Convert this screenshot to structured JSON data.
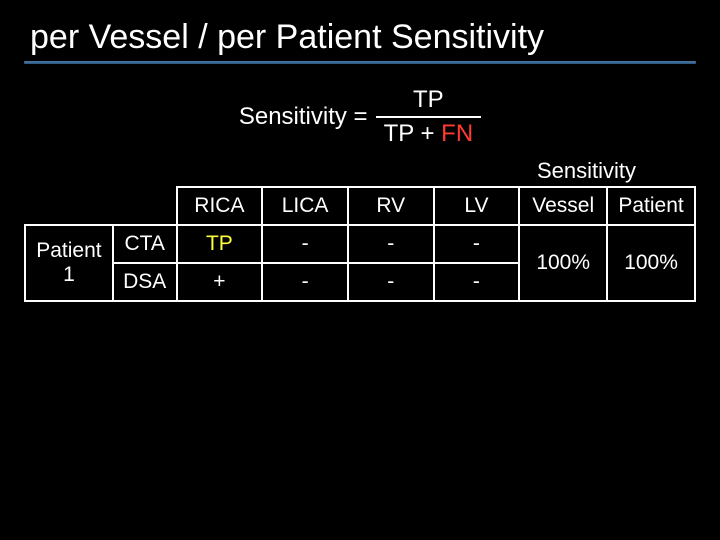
{
  "title": "per Vessel / per Patient Sensitivity",
  "formula": {
    "label": "Sensitivity =",
    "numerator": "TP",
    "den_left": "TP + ",
    "den_fn": "FN"
  },
  "sensitivity_header": "Sensitivity",
  "columns": {
    "rica": "RICA",
    "lica": "LICA",
    "rv": "RV",
    "lv": "LV",
    "vessel": "Vessel",
    "patient": "Patient"
  },
  "patient_label": "Patient 1",
  "rows": {
    "cta": {
      "mod": "CTA",
      "rica": "TP",
      "lica": "-",
      "rv": "-",
      "lv": "-"
    },
    "dsa": {
      "mod": "DSA",
      "rica": "+",
      "lica": "-",
      "rv": "-",
      "lv": "-"
    }
  },
  "sensitivity": {
    "vessel": "100%",
    "patient": "100%"
  },
  "colors": {
    "background": "#000000",
    "text": "#ffffff",
    "fn": "#ff3b30",
    "tp_highlight": "#ffff3b",
    "underline": "#4a7ba8"
  }
}
